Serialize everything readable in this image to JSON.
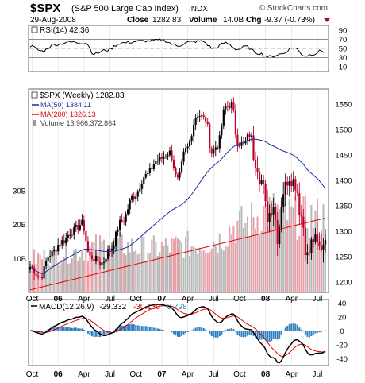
{
  "header": {
    "symbol": "$SPX",
    "name": "(S&P 500 Large Cap Index)",
    "exchange": "INDX",
    "date": "29-Aug-2008",
    "close_label": "Close",
    "close": "1282.83",
    "volume_label": "Volume",
    "volume": "14.0B",
    "chg_label": "Chg",
    "chg": "-9.37 (-0.73%)",
    "brand": "© StockCharts.com"
  },
  "colors": {
    "price_up": "#000000",
    "price_down": "#c0002a",
    "ma50": "#1a2a9a",
    "ma200": "#e00000",
    "vol_up": "#b8b8b8",
    "vol_down": "#e8a0a8",
    "macd_hist": "#2c7fc0",
    "macd_line": "#000000",
    "macd_signal": "#e00000"
  },
  "rsi": {
    "legend": "RSI(14) 42.36",
    "ticks": [
      "90",
      "70",
      "50",
      "30",
      "10"
    ],
    "ylim": [
      0,
      100
    ],
    "levels": [
      70,
      50,
      30
    ]
  },
  "price": {
    "legend": "$SPX (Weekly) 1282.83",
    "ma50_legend": "MA(50) 1384.11",
    "ma200_legend": "MA(200) 1326.13",
    "volume_legend": "Volume 13,966,372,864",
    "ticks": [
      "1550",
      "1500",
      "1450",
      "1400",
      "1350",
      "1300",
      "1250",
      "1200"
    ],
    "volume_ticks": [
      "30B",
      "20B",
      "10B"
    ]
  },
  "macd": {
    "legend_name": "MACD(12,26,9)",
    "legend_macd": "-29.332",
    "legend_signal": "-30.130",
    "legend_hist": "0.798",
    "ticks": [
      "40",
      "20",
      "0",
      "-20",
      "-40"
    ]
  },
  "x_labels": [
    {
      "label": "Oct",
      "bold": false,
      "index": 1
    },
    {
      "label": "06",
      "bold": true,
      "index": 14
    },
    {
      "label": "Apr",
      "bold": false,
      "index": 27
    },
    {
      "label": "Jul",
      "bold": false,
      "index": 40
    },
    {
      "label": "Oct",
      "bold": false,
      "index": 53
    },
    {
      "label": "07",
      "bold": true,
      "index": 66
    },
    {
      "label": "Apr",
      "bold": false,
      "index": 79
    },
    {
      "label": "Jul",
      "bold": false,
      "index": 92
    },
    {
      "label": "Oct",
      "bold": false,
      "index": 105
    },
    {
      "label": "08",
      "bold": true,
      "index": 118
    },
    {
      "label": "Apr",
      "bold": false,
      "index": 131
    },
    {
      "label": "Jul",
      "bold": false,
      "index": 144
    }
  ],
  "chart_data": {
    "type": "line",
    "xlabel": "",
    "ylabel": "",
    "price_ylim": [
      1180,
      1580
    ],
    "volume_max": 60,
    "macd_ylim": [
      -50,
      45
    ],
    "anchors": {
      "close": [
        [
          0,
          1230
        ],
        [
          5,
          1210
        ],
        [
          10,
          1255
        ],
        [
          16,
          1280
        ],
        [
          21,
          1300
        ],
        [
          26,
          1315
        ],
        [
          30,
          1250
        ],
        [
          36,
          1238
        ],
        [
          40,
          1265
        ],
        [
          46,
          1320
        ],
        [
          52,
          1370
        ],
        [
          58,
          1410
        ],
        [
          64,
          1440
        ],
        [
          70,
          1455
        ],
        [
          74,
          1400
        ],
        [
          78,
          1460
        ],
        [
          84,
          1530
        ],
        [
          88,
          1520
        ],
        [
          91,
          1455
        ],
        [
          94,
          1470
        ],
        [
          98,
          1545
        ],
        [
          101,
          1550
        ],
        [
          104,
          1475
        ],
        [
          107,
          1470
        ],
        [
          110,
          1490
        ],
        [
          113,
          1440
        ],
        [
          116,
          1400
        ],
        [
          119,
          1330
        ],
        [
          122,
          1355
        ],
        [
          124,
          1290
        ],
        [
          127,
          1380
        ],
        [
          130,
          1410
        ],
        [
          133,
          1395
        ],
        [
          136,
          1330
        ],
        [
          139,
          1250
        ],
        [
          142,
          1285
        ],
        [
          145,
          1267
        ],
        [
          148,
          1282.83
        ]
      ],
      "volume": [
        [
          0,
          10
        ],
        [
          20,
          12
        ],
        [
          40,
          14
        ],
        [
          60,
          13
        ],
        [
          80,
          14
        ],
        [
          92,
          15
        ],
        [
          105,
          20
        ],
        [
          120,
          24
        ],
        [
          135,
          22
        ],
        [
          148,
          22
        ]
      ],
      "rsi": [
        [
          0,
          55
        ],
        [
          6,
          44
        ],
        [
          12,
          58
        ],
        [
          20,
          64
        ],
        [
          28,
          62
        ],
        [
          32,
          38
        ],
        [
          38,
          46
        ],
        [
          46,
          62
        ],
        [
          56,
          66
        ],
        [
          66,
          68
        ],
        [
          74,
          56
        ],
        [
          80,
          64
        ],
        [
          86,
          66
        ],
        [
          92,
          50
        ],
        [
          98,
          62
        ],
        [
          104,
          48
        ],
        [
          108,
          54
        ],
        [
          114,
          40
        ],
        [
          120,
          32
        ],
        [
          126,
          38
        ],
        [
          132,
          52
        ],
        [
          138,
          34
        ],
        [
          142,
          38
        ],
        [
          146,
          45
        ],
        [
          148,
          42.36
        ]
      ]
    },
    "rsi_last": 42.36,
    "close_last": 1282.83,
    "ma50_last": 1384.11,
    "ma200_last": 1326.13,
    "macd_last": -29.332,
    "signal_last": -30.13,
    "hist_last": 0.798
  }
}
